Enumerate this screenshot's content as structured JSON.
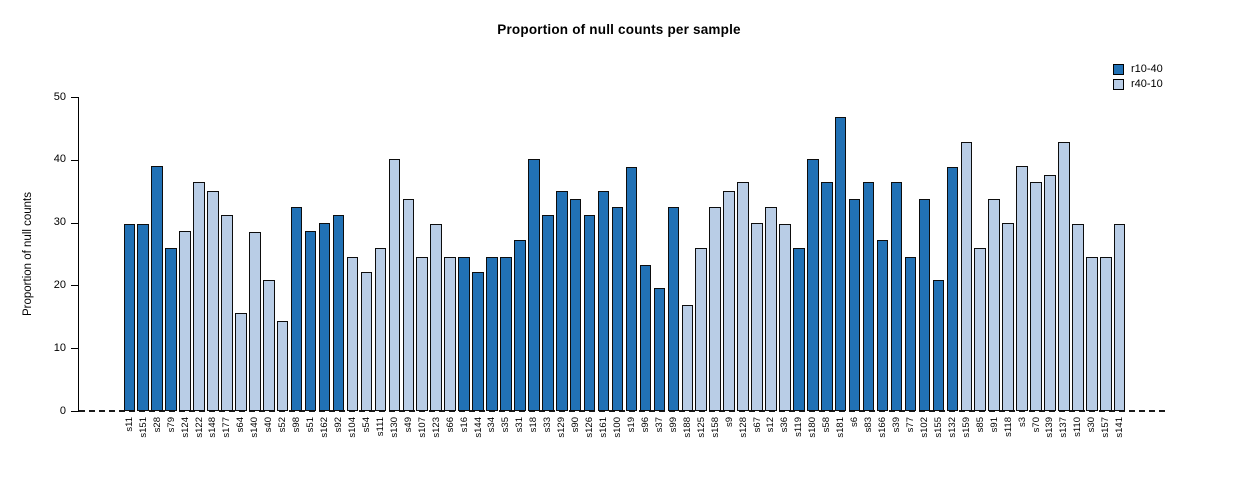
{
  "chart_data": {
    "type": "bar",
    "title": "Proportion of null counts per sample",
    "xlabel": "",
    "ylabel": "Proportion of null counts",
    "ylim": [
      0,
      50
    ],
    "yticks": [
      0,
      10,
      20,
      30,
      40,
      50
    ],
    "grid": false,
    "legend_position": "top-right",
    "legend": [
      {
        "label": "r10-40",
        "color": "#2171b5"
      },
      {
        "label": "r40-10",
        "color": "#b9cde6"
      }
    ],
    "baseline_style": "dashed",
    "samples": [
      {
        "name": "s11",
        "value": 29.8,
        "group": "r10-40"
      },
      {
        "name": "s151",
        "value": 29.8,
        "group": "r10-40"
      },
      {
        "name": "s28",
        "value": 39.0,
        "group": "r10-40"
      },
      {
        "name": "s79",
        "value": 26.0,
        "group": "r10-40"
      },
      {
        "name": "s124",
        "value": 28.6,
        "group": "r40-10"
      },
      {
        "name": "s122",
        "value": 36.4,
        "group": "r40-10"
      },
      {
        "name": "s148",
        "value": 35.0,
        "group": "r40-10"
      },
      {
        "name": "s177",
        "value": 31.2,
        "group": "r40-10"
      },
      {
        "name": "s64",
        "value": 15.6,
        "group": "r40-10"
      },
      {
        "name": "s140",
        "value": 28.5,
        "group": "r40-10"
      },
      {
        "name": "s40",
        "value": 20.8,
        "group": "r40-10"
      },
      {
        "name": "s52",
        "value": 14.3,
        "group": "r40-10"
      },
      {
        "name": "s98",
        "value": 32.5,
        "group": "r10-40"
      },
      {
        "name": "s51",
        "value": 28.6,
        "group": "r10-40"
      },
      {
        "name": "s162",
        "value": 29.9,
        "group": "r10-40"
      },
      {
        "name": "s92",
        "value": 31.2,
        "group": "r10-40"
      },
      {
        "name": "s104",
        "value": 24.5,
        "group": "r40-10"
      },
      {
        "name": "s54",
        "value": 22.1,
        "group": "r40-10"
      },
      {
        "name": "s111",
        "value": 26.0,
        "group": "r40-10"
      },
      {
        "name": "s130",
        "value": 40.2,
        "group": "r40-10"
      },
      {
        "name": "s49",
        "value": 33.8,
        "group": "r40-10"
      },
      {
        "name": "s107",
        "value": 24.6,
        "group": "r40-10"
      },
      {
        "name": "s123",
        "value": 29.8,
        "group": "r40-10"
      },
      {
        "name": "s66",
        "value": 24.6,
        "group": "r40-10"
      },
      {
        "name": "s16",
        "value": 24.5,
        "group": "r10-40"
      },
      {
        "name": "s144",
        "value": 22.1,
        "group": "r10-40"
      },
      {
        "name": "s34",
        "value": 24.6,
        "group": "r10-40"
      },
      {
        "name": "s35",
        "value": 24.6,
        "group": "r10-40"
      },
      {
        "name": "s31",
        "value": 27.3,
        "group": "r10-40"
      },
      {
        "name": "s18",
        "value": 40.1,
        "group": "r10-40"
      },
      {
        "name": "s33",
        "value": 31.2,
        "group": "r10-40"
      },
      {
        "name": "s129",
        "value": 35.0,
        "group": "r10-40"
      },
      {
        "name": "s90",
        "value": 33.7,
        "group": "r10-40"
      },
      {
        "name": "s126",
        "value": 31.2,
        "group": "r10-40"
      },
      {
        "name": "s161",
        "value": 35.0,
        "group": "r10-40"
      },
      {
        "name": "s100",
        "value": 32.5,
        "group": "r10-40"
      },
      {
        "name": "s19",
        "value": 38.9,
        "group": "r10-40"
      },
      {
        "name": "s96",
        "value": 23.3,
        "group": "r10-40"
      },
      {
        "name": "s37",
        "value": 19.6,
        "group": "r10-40"
      },
      {
        "name": "s99",
        "value": 32.5,
        "group": "r10-40"
      },
      {
        "name": "s188",
        "value": 16.9,
        "group": "r40-10"
      },
      {
        "name": "s125",
        "value": 26.0,
        "group": "r40-10"
      },
      {
        "name": "s158",
        "value": 32.5,
        "group": "r40-10"
      },
      {
        "name": "s9",
        "value": 35.0,
        "group": "r40-10"
      },
      {
        "name": "s128",
        "value": 36.4,
        "group": "r40-10"
      },
      {
        "name": "s67",
        "value": 29.9,
        "group": "r40-10"
      },
      {
        "name": "s12",
        "value": 32.5,
        "group": "r40-10"
      },
      {
        "name": "s36",
        "value": 29.8,
        "group": "r40-10"
      },
      {
        "name": "s119",
        "value": 26.0,
        "group": "r10-40"
      },
      {
        "name": "s180",
        "value": 40.2,
        "group": "r10-40"
      },
      {
        "name": "s58",
        "value": 36.4,
        "group": "r10-40"
      },
      {
        "name": "s181",
        "value": 46.8,
        "group": "r10-40"
      },
      {
        "name": "s6",
        "value": 33.7,
        "group": "r10-40"
      },
      {
        "name": "s83",
        "value": 36.4,
        "group": "r10-40"
      },
      {
        "name": "s166",
        "value": 27.3,
        "group": "r10-40"
      },
      {
        "name": "s39",
        "value": 36.4,
        "group": "r10-40"
      },
      {
        "name": "s77",
        "value": 24.5,
        "group": "r10-40"
      },
      {
        "name": "s102",
        "value": 33.7,
        "group": "r10-40"
      },
      {
        "name": "s155",
        "value": 20.8,
        "group": "r10-40"
      },
      {
        "name": "s132",
        "value": 38.9,
        "group": "r10-40"
      },
      {
        "name": "s159",
        "value": 42.8,
        "group": "r40-10"
      },
      {
        "name": "s85",
        "value": 26.0,
        "group": "r40-10"
      },
      {
        "name": "s91",
        "value": 33.8,
        "group": "r40-10"
      },
      {
        "name": "s118",
        "value": 29.9,
        "group": "r40-10"
      },
      {
        "name": "s3",
        "value": 39.0,
        "group": "r40-10"
      },
      {
        "name": "s70",
        "value": 36.4,
        "group": "r40-10"
      },
      {
        "name": "s139",
        "value": 37.6,
        "group": "r40-10"
      },
      {
        "name": "s137",
        "value": 42.8,
        "group": "r40-10"
      },
      {
        "name": "s110",
        "value": 29.8,
        "group": "r40-10"
      },
      {
        "name": "s30",
        "value": 24.5,
        "group": "r40-10"
      },
      {
        "name": "s157",
        "value": 24.6,
        "group": "r40-10"
      },
      {
        "name": "s141",
        "value": 29.8,
        "group": "r40-10"
      }
    ]
  }
}
